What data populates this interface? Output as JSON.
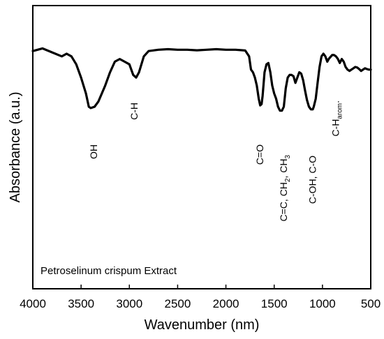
{
  "chart_data": {
    "type": "line",
    "title": "",
    "xlabel": "Wavenumber (nm)",
    "ylabel": "Absorbance (a.u.)",
    "xlim": [
      4000,
      500
    ],
    "x_reversed": true,
    "xticks": [
      "4000",
      "3500",
      "3000",
      "2500",
      "2000",
      "1500",
      "1000",
      "500"
    ],
    "y_tick_labels": "none",
    "ylim": [
      0,
      100
    ],
    "legend_text": "Petroselinum crispum Extract",
    "series": [
      {
        "color": "#000000",
        "points": [
          [
            4000,
            86
          ],
          [
            3900,
            87
          ],
          [
            3800,
            85.5
          ],
          [
            3700,
            84
          ],
          [
            3650,
            85
          ],
          [
            3600,
            84
          ],
          [
            3550,
            81
          ],
          [
            3500,
            76
          ],
          [
            3450,
            70
          ],
          [
            3420,
            65
          ],
          [
            3400,
            64.5
          ],
          [
            3360,
            65
          ],
          [
            3320,
            67
          ],
          [
            3250,
            73
          ],
          [
            3200,
            78
          ],
          [
            3150,
            82
          ],
          [
            3100,
            83
          ],
          [
            3050,
            82
          ],
          [
            3000,
            81
          ],
          [
            2960,
            77
          ],
          [
            2930,
            76
          ],
          [
            2900,
            78
          ],
          [
            2850,
            84
          ],
          [
            2800,
            86
          ],
          [
            2700,
            86.5
          ],
          [
            2600,
            86.7
          ],
          [
            2500,
            86.5
          ],
          [
            2400,
            86.5
          ],
          [
            2300,
            86.3
          ],
          [
            2200,
            86.5
          ],
          [
            2100,
            86.7
          ],
          [
            2000,
            86.5
          ],
          [
            1900,
            86.5
          ],
          [
            1800,
            86.2
          ],
          [
            1760,
            84
          ],
          [
            1740,
            79
          ],
          [
            1720,
            78
          ],
          [
            1700,
            76
          ],
          [
            1680,
            73
          ],
          [
            1660,
            68
          ],
          [
            1645,
            65.5
          ],
          [
            1630,
            66
          ],
          [
            1620,
            69
          ],
          [
            1600,
            78
          ],
          [
            1580,
            81
          ],
          [
            1560,
            81.5
          ],
          [
            1540,
            78
          ],
          [
            1520,
            73
          ],
          [
            1500,
            70
          ],
          [
            1480,
            68
          ],
          [
            1460,
            65
          ],
          [
            1440,
            63.5
          ],
          [
            1420,
            63.5
          ],
          [
            1400,
            65
          ],
          [
            1380,
            72
          ],
          [
            1360,
            76
          ],
          [
            1340,
            77
          ],
          [
            1320,
            77
          ],
          [
            1300,
            76.5
          ],
          [
            1280,
            74
          ],
          [
            1260,
            76
          ],
          [
            1240,
            78
          ],
          [
            1220,
            77.5
          ],
          [
            1200,
            75
          ],
          [
            1180,
            71
          ],
          [
            1160,
            67.5
          ],
          [
            1140,
            65
          ],
          [
            1120,
            64
          ],
          [
            1100,
            64
          ],
          [
            1090,
            65
          ],
          [
            1070,
            68
          ],
          [
            1050,
            74
          ],
          [
            1030,
            80
          ],
          [
            1010,
            84
          ],
          [
            990,
            85
          ],
          [
            970,
            84
          ],
          [
            950,
            82
          ],
          [
            935,
            83
          ],
          [
            900,
            84.5
          ],
          [
            880,
            84.5
          ],
          [
            860,
            84
          ],
          [
            840,
            83
          ],
          [
            820,
            81.5
          ],
          [
            800,
            83
          ],
          [
            780,
            82
          ],
          [
            760,
            80
          ],
          [
            740,
            79
          ],
          [
            720,
            78.5
          ],
          [
            700,
            79
          ],
          [
            680,
            79.5
          ],
          [
            660,
            80
          ],
          [
            640,
            79.8
          ],
          [
            620,
            79.2
          ],
          [
            600,
            78.5
          ],
          [
            580,
            79
          ],
          [
            560,
            79.5
          ],
          [
            540,
            79.2
          ],
          [
            520,
            79
          ],
          [
            500,
            79
          ]
        ]
      }
    ],
    "annotations": [
      {
        "text": "OH",
        "x": 3370
      },
      {
        "text": "C-H",
        "x": 2950
      },
      {
        "text": "C=O",
        "x": 1650
      },
      {
        "text_parts": [
          "C=C, CH",
          "2",
          ", CH",
          "3"
        ],
        "x": 1405
      },
      {
        "text": "C-OH, C-O",
        "x": 1105
      },
      {
        "text_parts": [
          "C-H",
          "arom",
          "."
        ],
        "x": 865
      }
    ]
  }
}
